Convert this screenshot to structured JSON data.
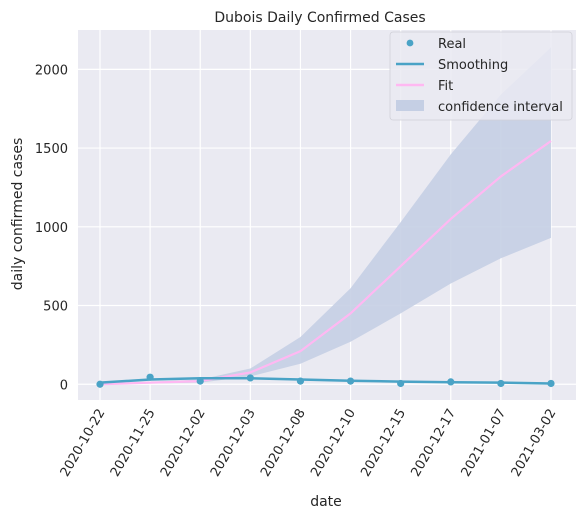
{
  "chart_data": {
    "type": "line",
    "title": "Dubois Daily Confirmed Cases",
    "xlabel": "date",
    "ylabel": "daily confirmed cases",
    "categories": [
      "2020-10-22",
      "2020-11-25",
      "2020-12-02",
      "2020-12-03",
      "2020-12-08",
      "2020-12-10",
      "2020-12-15",
      "2020-12-17",
      "2021-01-07",
      "2021-03-02"
    ],
    "ylim": [
      -100,
      2250
    ],
    "yticks": [
      0,
      500,
      1000,
      1500,
      2000
    ],
    "grid": true,
    "legend_position": "top-right",
    "series": [
      {
        "name": "Real",
        "kind": "scatter",
        "color": "#4aa3c6",
        "values": [
          0,
          45,
          20,
          40,
          20,
          20,
          5,
          15,
          5,
          5
        ]
      },
      {
        "name": "Smoothing",
        "kind": "line",
        "color": "#4aa3c6",
        "values": [
          10,
          30,
          38,
          38,
          30,
          22,
          17,
          13,
          10,
          5
        ]
      },
      {
        "name": "Fit",
        "kind": "line",
        "color": "#ffb8f2",
        "values": [
          0,
          10,
          20,
          75,
          210,
          450,
          750,
          1050,
          1320,
          1545
        ]
      },
      {
        "name": "confidence interval",
        "kind": "band",
        "color": "#c5cfe4",
        "lower": [
          0,
          5,
          10,
          50,
          130,
          270,
          450,
          640,
          800,
          930
        ],
        "upper": [
          0,
          15,
          30,
          100,
          300,
          610,
          1030,
          1460,
          1840,
          2140
        ]
      }
    ]
  }
}
